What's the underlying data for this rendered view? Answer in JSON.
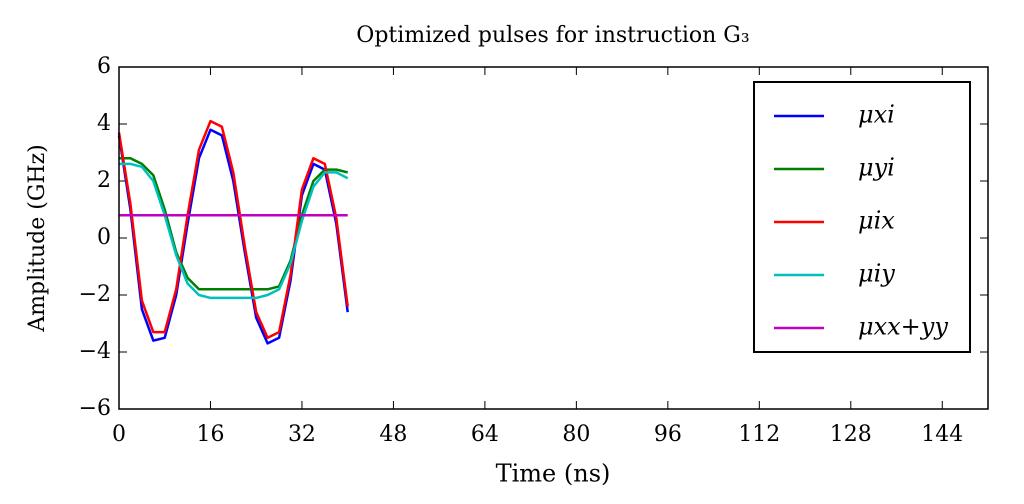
{
  "chart_data": {
    "type": "line",
    "title": "Optimized pulses for instruction G₃",
    "xlabel": "Time (ns)",
    "ylabel": "Amplitude (GHz)",
    "x": [
      0,
      2,
      4,
      6,
      8,
      10,
      12,
      14,
      16,
      18,
      20,
      22,
      24,
      26,
      28,
      30,
      32,
      34,
      36,
      38,
      40
    ],
    "series": [
      {
        "name": "μxi",
        "color": "#0000ff",
        "values": [
          3.6,
          1.0,
          -2.5,
          -3.6,
          -3.5,
          -2.0,
          0.5,
          2.8,
          3.8,
          3.6,
          2.0,
          -0.5,
          -2.8,
          -3.7,
          -3.5,
          -1.5,
          1.5,
          2.6,
          2.4,
          0.5,
          -2.6
        ]
      },
      {
        "name": "μyi",
        "color": "#007f00",
        "values": [
          2.8,
          2.8,
          2.6,
          2.2,
          1.0,
          -0.5,
          -1.4,
          -1.8,
          -1.8,
          -1.8,
          -1.8,
          -1.8,
          -1.8,
          -1.8,
          -1.7,
          -0.8,
          0.8,
          2.0,
          2.4,
          2.4,
          2.3
        ]
      },
      {
        "name": "μix",
        "color": "#ff0000",
        "values": [
          3.7,
          1.2,
          -2.2,
          -3.3,
          -3.3,
          -1.8,
          0.8,
          3.1,
          4.1,
          3.9,
          2.3,
          -0.3,
          -2.6,
          -3.5,
          -3.3,
          -1.3,
          1.7,
          2.8,
          2.6,
          0.7,
          -2.4
        ]
      },
      {
        "name": "μiy",
        "color": "#00bfbf",
        "values": [
          2.6,
          2.6,
          2.5,
          2.0,
          0.8,
          -0.6,
          -1.6,
          -2.0,
          -2.1,
          -2.1,
          -2.1,
          -2.1,
          -2.1,
          -2.0,
          -1.8,
          -0.9,
          0.6,
          1.8,
          2.3,
          2.3,
          2.1
        ]
      },
      {
        "name": "μxx+yy",
        "color": "#bf00bf",
        "values": [
          0.8,
          0.8,
          0.8,
          0.8,
          0.8,
          0.8,
          0.8,
          0.8,
          0.8,
          0.8,
          0.8,
          0.8,
          0.8,
          0.8,
          0.8,
          0.8,
          0.8,
          0.8,
          0.8,
          0.8,
          0.8
        ]
      }
    ],
    "xlim": [
      0,
      152
    ],
    "xticks": [
      0,
      16,
      32,
      48,
      64,
      80,
      96,
      112,
      128,
      144
    ],
    "ylim": [
      -6,
      6
    ],
    "yticks": [
      {
        "value": -6,
        "label": "−6"
      },
      {
        "value": -4,
        "label": "−4"
      },
      {
        "value": -2,
        "label": "−2"
      },
      0,
      2,
      4,
      6
    ],
    "legend": "upper right"
  }
}
